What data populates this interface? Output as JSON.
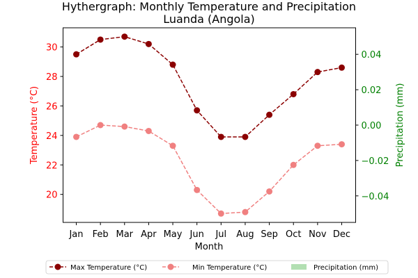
{
  "chart_data": {
    "type": "line",
    "title": "Hythergraph: Monthly Temperature and Precipitation",
    "subtitle": "Luanda (Angola)",
    "xlabel": "Month",
    "ylabel_left": "Temperature (°C)",
    "ylabel_right": "Precipitation (mm)",
    "categories": [
      "Jan",
      "Feb",
      "Mar",
      "Apr",
      "May",
      "Jun",
      "Jul",
      "Aug",
      "Sep",
      "Oct",
      "Nov",
      "Dec"
    ],
    "series": [
      {
        "name": "Max Temperature (°C)",
        "axis": "left",
        "color": "#8b0000",
        "line_style": "dashed",
        "marker": "circle",
        "values": [
          29.5,
          30.5,
          30.7,
          30.2,
          28.8,
          25.7,
          23.9,
          23.9,
          25.4,
          26.8,
          28.3,
          28.6
        ]
      },
      {
        "name": "Min Temperature (°C)",
        "axis": "left",
        "color": "#f08080",
        "line_style": "dashed",
        "marker": "circle",
        "values": [
          23.9,
          24.7,
          24.6,
          24.3,
          23.3,
          20.3,
          18.7,
          18.8,
          20.2,
          22.0,
          23.3,
          23.4
        ]
      },
      {
        "name": "Precipitation (mm)",
        "axis": "right",
        "color": "#b2dfb2",
        "type": "bar",
        "values": [
          0,
          0,
          0,
          0,
          0,
          0,
          0,
          0,
          0,
          0,
          0,
          0
        ]
      }
    ],
    "y_left": {
      "lim": [
        18.1,
        31.3
      ],
      "ticks": [
        20,
        22,
        24,
        26,
        28,
        30
      ],
      "tick_labels": [
        "20",
        "22",
        "24",
        "26",
        "28",
        "30"
      ],
      "color": "#ff0000"
    },
    "y_right": {
      "lim": [
        -0.055,
        0.055
      ],
      "ticks": [
        -0.04,
        -0.02,
        0.0,
        0.02,
        0.04
      ],
      "tick_labels": [
        "−0.04",
        "−0.02",
        "0.00",
        "0.02",
        "0.04"
      ],
      "color": "#008000"
    },
    "grid": false,
    "legend_position": "bottom-center"
  }
}
